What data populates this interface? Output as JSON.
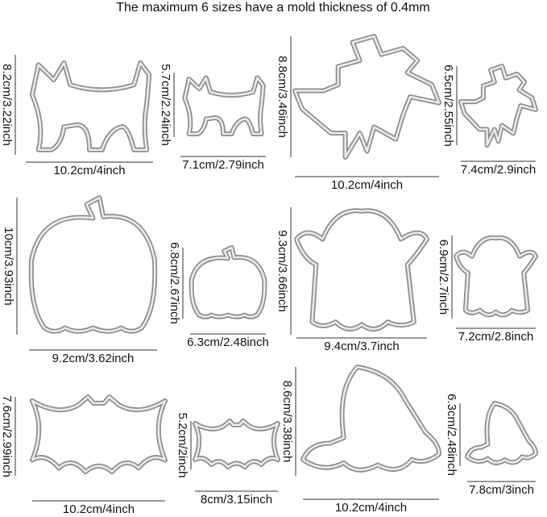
{
  "title": "The maximum 6 sizes have a mold thickness of 0.4mm",
  "items": [
    {
      "width": "10.2cm/4inch",
      "height": "8.2cm/3.22inch"
    },
    {
      "width": "7.1cm/2.79inch",
      "height": "5.7cm/2.24inch"
    },
    {
      "width": "10.2cm/4inch",
      "height": "8.8cm/3.46inch"
    },
    {
      "width": "7.4cm/2.9inch",
      "height": "6.5cm/2.55inch"
    },
    {
      "width": "9.2cm/3.62inch",
      "height": "10cm/3.93inch"
    },
    {
      "width": "6.3cm/2.48inch",
      "height": "6.8cm/2.67inch"
    },
    {
      "width": "9.4cm/3.7inch",
      "height": "9.3cm/3.66inch"
    },
    {
      "width": "7.2cm/2.8inch",
      "height": "6.9cm/2.7inch"
    },
    {
      "width": "10.2cm/4inch",
      "height": "7.6cm/2.99inch"
    },
    {
      "width": "8cm/3.15inch",
      "height": "5.2cm/2inch"
    },
    {
      "width": "10.2cm/4inch",
      "height": "8.6cm/3.38inch"
    },
    {
      "width": "7.8cm/3inch",
      "height": "6.3cm/2.48inch"
    }
  ]
}
